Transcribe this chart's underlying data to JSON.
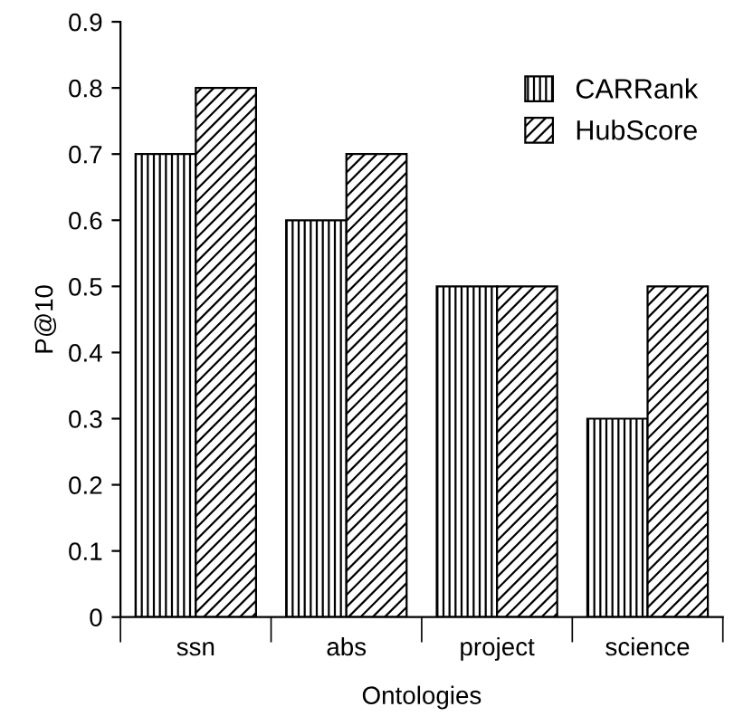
{
  "chart_data": {
    "type": "bar",
    "xlabel": "Ontologies",
    "ylabel": "P@10",
    "categories": [
      "ssn",
      "abs",
      "project",
      "science"
    ],
    "series": [
      {
        "name": "CARRank",
        "color": "#000000",
        "values": [
          0.7,
          0.6,
          0.5,
          0.3
        ]
      },
      {
        "name": "HubScore",
        "color": "#000000",
        "values": [
          0.8,
          0.7,
          0.5,
          0.5
        ]
      }
    ],
    "ylim": [
      0,
      0.9
    ],
    "yticks": [
      0,
      0.1,
      0.2,
      0.3,
      0.4,
      0.5,
      0.6,
      0.7,
      0.8,
      0.9
    ],
    "grid": false,
    "legend": "top right"
  }
}
